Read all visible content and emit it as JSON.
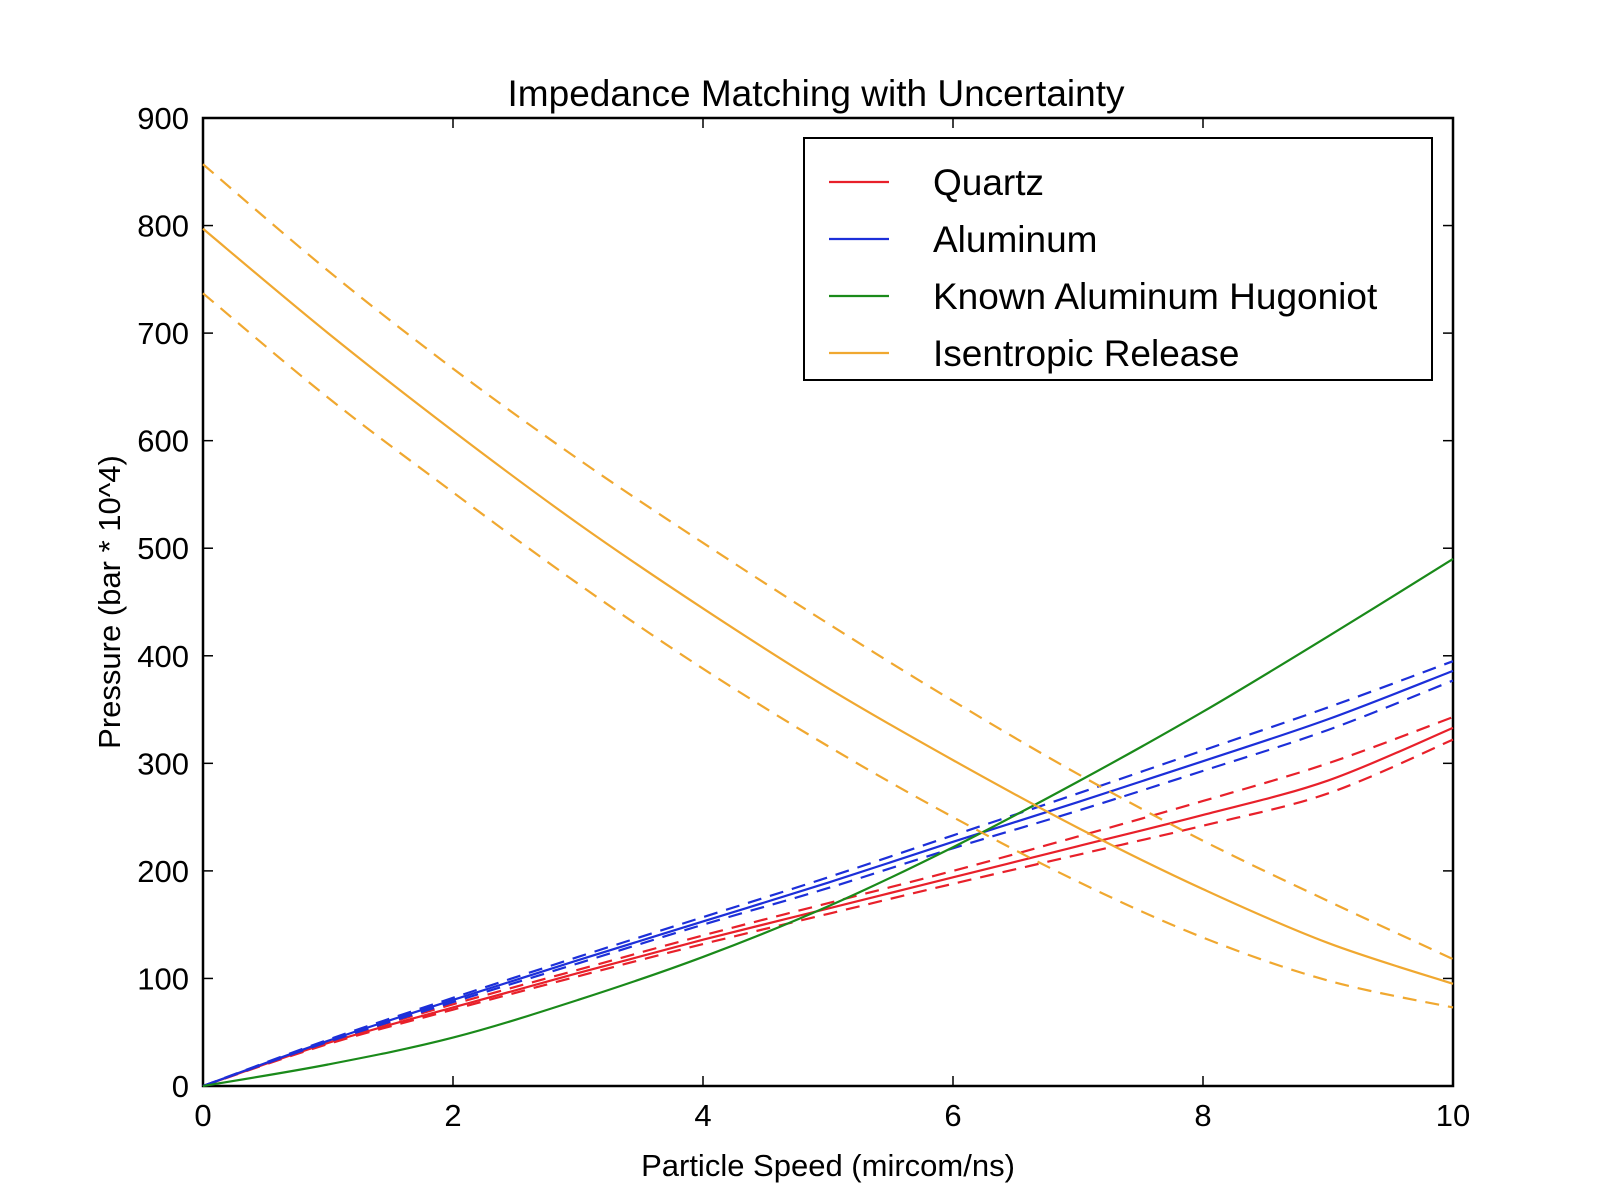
{
  "chart_data": {
    "type": "line",
    "title": "Impedance Matching with Uncertainty",
    "xlabel": "Particle Speed (mircom/ns)",
    "ylabel": "Pressure (bar * 10^4)",
    "xlim": [
      0,
      10
    ],
    "ylim": [
      0,
      900
    ],
    "xticks": [
      0,
      2,
      4,
      6,
      8,
      10
    ],
    "yticks": [
      0,
      100,
      200,
      300,
      400,
      500,
      600,
      700,
      800,
      900
    ],
    "grid": false,
    "legend_position": "top-right",
    "x": [
      0,
      1,
      2,
      3,
      4,
      5,
      6,
      7,
      8,
      9,
      10
    ],
    "series": [
      {
        "name": "Quartz",
        "color": "#e8202a",
        "values": [
          0,
          40,
          73,
          105,
          136,
          165,
          194,
          223,
          252,
          284,
          333
        ],
        "upper": [
          0,
          41,
          76,
          108,
          140,
          170,
          200,
          232,
          265,
          300,
          343
        ],
        "lower": [
          0,
          39,
          71,
          102,
          132,
          160,
          188,
          215,
          242,
          272,
          322
        ]
      },
      {
        "name": "Aluminum",
        "color": "#1c2fd9",
        "values": [
          0,
          42,
          80,
          117,
          153,
          189,
          227,
          264,
          302,
          341,
          386
        ],
        "upper": [
          0,
          43,
          82,
          120,
          157,
          194,
          233,
          272,
          312,
          352,
          395
        ],
        "lower": [
          0,
          41,
          78,
          114,
          150,
          184,
          221,
          256,
          293,
          331,
          377
        ]
      },
      {
        "name": "Known Aluminum Hugoniot",
        "color": "#1a8a1a",
        "values": [
          0,
          20,
          45,
          80,
          120,
          167,
          222,
          283,
          348,
          418,
          490
        ]
      },
      {
        "name": "Isentropic Release",
        "color": "#f0a830",
        "values": [
          797,
          700,
          609,
          523,
          444,
          370,
          303,
          240,
          183,
          133,
          95
        ],
        "upper": [
          857,
          758,
          667,
          583,
          505,
          430,
          358,
          290,
          228,
          172,
          118
        ],
        "lower": [
          737,
          640,
          552,
          467,
          388,
          316,
          250,
          190,
          138,
          98,
          73
        ]
      }
    ]
  }
}
